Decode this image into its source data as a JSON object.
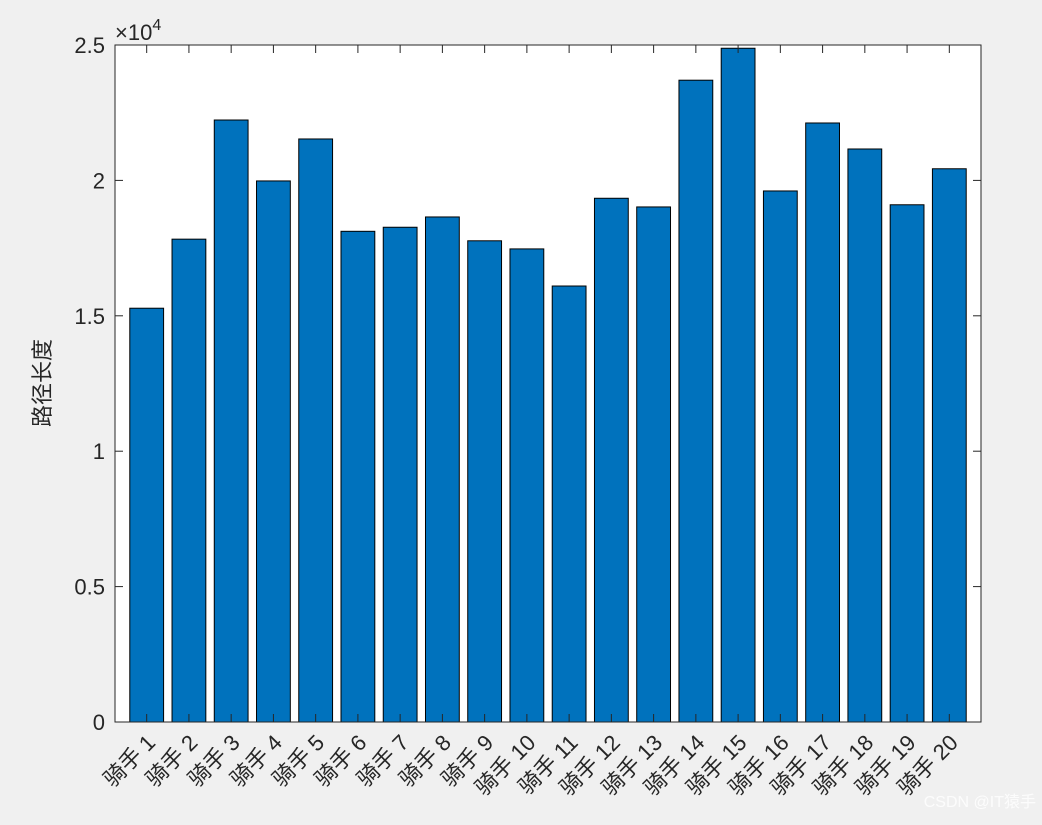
{
  "chart_data": {
    "type": "bar",
    "title": "",
    "xlabel": "",
    "ylabel": "路径长度",
    "y_exponent_label": "×10",
    "y_exponent_power": "4",
    "categories": [
      "骑手 1",
      "骑手 2",
      "骑手 3",
      "骑手 4",
      "骑手 5",
      "骑手 6",
      "骑手 7",
      "骑手 8",
      "骑手 9",
      "骑手 10",
      "骑手 11",
      "骑手 12",
      "骑手 13",
      "骑手 14",
      "骑手 15",
      "骑手 16",
      "骑手 17",
      "骑手 18",
      "骑手 19",
      "骑手 20"
    ],
    "values": [
      15280,
      17830,
      22230,
      19980,
      21530,
      18120,
      18270,
      18650,
      17770,
      17470,
      16100,
      19340,
      19020,
      23700,
      24880,
      19610,
      22120,
      21160,
      19100,
      20430
    ],
    "ylim": [
      0,
      25000
    ],
    "yticks": [
      0,
      5000,
      10000,
      15000,
      20000,
      25000
    ],
    "ytick_labels": [
      "0",
      "0.5",
      "1",
      "1.5",
      "2",
      "2.5"
    ],
    "bar_color": "#0072BD",
    "grid": false,
    "legend": "none"
  },
  "watermark": "CSDN @IT猿手"
}
